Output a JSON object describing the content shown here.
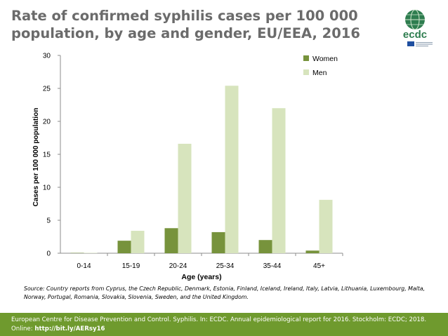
{
  "title": "Rate of confirmed syphilis cases per 100 000 population, by age and gender, EU/EEA, 2016",
  "logo": {
    "text": "ecdc"
  },
  "colors": {
    "women": "#77933c",
    "men": "#d7e4bd",
    "footer_bg": "#6f9a2e",
    "title": "#6b6b6b"
  },
  "chart_data": {
    "type": "bar",
    "categories": [
      "0-14",
      "15-19",
      "20-24",
      "25-34",
      "35-44",
      "45+"
    ],
    "series": [
      {
        "name": "Women",
        "values": [
          0.05,
          1.9,
          3.8,
          3.2,
          2.0,
          0.4
        ]
      },
      {
        "name": "Men",
        "values": [
          0.05,
          3.4,
          16.6,
          25.4,
          22.0,
          8.1
        ]
      }
    ],
    "xlabel": "Age (years)",
    "ylabel": "Cases per 100 000 population",
    "ylim": [
      0,
      30
    ],
    "yticks": [
      "0",
      "5",
      "10",
      "15",
      "20",
      "25",
      "30"
    ],
    "legend": "top-right",
    "grid": false
  },
  "source_note": "Source: Country reports from Cyprus, the Czech Republic, Denmark, Estonia, Finland, Iceland, Ireland, Italy, Latvia, Lithuania, Luxembourg, Malta, Norway, Portugal, Romania, Slovakia, Slovenia, Sweden, and the United Kingdom.",
  "footer": {
    "text": "European Centre for Disease Prevention and Control. Syphilis. In: ECDC. Annual epidemiological report for 2016. Stockholm: ECDC; 2018. Online: ",
    "link": "http://bit.ly/AERsy16"
  }
}
